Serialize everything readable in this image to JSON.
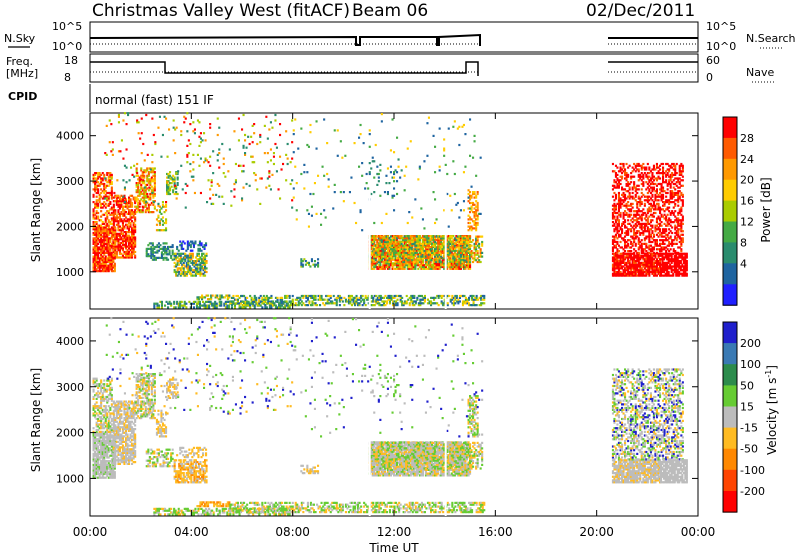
{
  "header": {
    "title": "Christmas Valley West (fitACF)",
    "beam": "Beam 06",
    "date": "02/Dec/2011"
  },
  "top_panels": {
    "nsky_label": "N.Sky",
    "nsky_ticks": [
      "10^5",
      "10^0"
    ],
    "nsearch_label": "N.Search",
    "nsearch_ticks": [
      "10^5",
      "10^0"
    ],
    "freq_label": "Freq.",
    "freq_unit": "[MHz]",
    "freq_ticks": [
      "18",
      "8"
    ],
    "nave_label": "Nave",
    "nave_ticks": [
      "60",
      "0"
    ],
    "cpid_label": "CPID",
    "cpid_text": "normal (fast) 151 IF"
  },
  "chart_data": [
    {
      "type": "heatmap",
      "panel": "power",
      "ylabel": "Slant Range [km]",
      "xlabel": "",
      "x_ticks": [
        "00:00",
        "04:00",
        "08:00",
        "12:00",
        "16:00",
        "20:00",
        "00:00"
      ],
      "x_range_hours": [
        0,
        24
      ],
      "y_ticks": [
        1000,
        2000,
        3000,
        4000
      ],
      "ylim": [
        180,
        4500
      ],
      "colorbar": {
        "label": "Power [dB]",
        "ticks": [
          "28",
          "24",
          "20",
          "16",
          "12",
          "8",
          "4"
        ],
        "colors": [
          "#ff0000",
          "#ff5a00",
          "#ff9900",
          "#ffcc00",
          "#aacc00",
          "#44aa44",
          "#2a8c6e",
          "#1e64a0",
          "#2020ff"
        ]
      },
      "data_gaps_hours": [
        [
          15.6,
          20.6
        ]
      ]
    },
    {
      "type": "heatmap",
      "panel": "velocity",
      "ylabel": "Slant Range [km]",
      "xlabel": "Time UT",
      "x_ticks": [
        "00:00",
        "04:00",
        "08:00",
        "12:00",
        "16:00",
        "20:00",
        "00:00"
      ],
      "x_range_hours": [
        0,
        24
      ],
      "y_ticks": [
        1000,
        2000,
        3000,
        4000
      ],
      "ylim": [
        180,
        4500
      ],
      "colorbar": {
        "label_main": "Velocity [m s",
        "label_sup": "-1",
        "label_end": "]",
        "ticks": [
          "200",
          "100",
          "50",
          "15",
          "-15",
          "-50",
          "-100",
          "-200"
        ],
        "colors": [
          "#2020cc",
          "#3a7ab4",
          "#2c8c4c",
          "#66cc33",
          "#bcbcbc",
          "#ffbb22",
          "#ff8800",
          "#ff4400",
          "#ff0000"
        ]
      },
      "data_gaps_hours": [
        [
          15.6,
          20.6
        ]
      ]
    }
  ]
}
